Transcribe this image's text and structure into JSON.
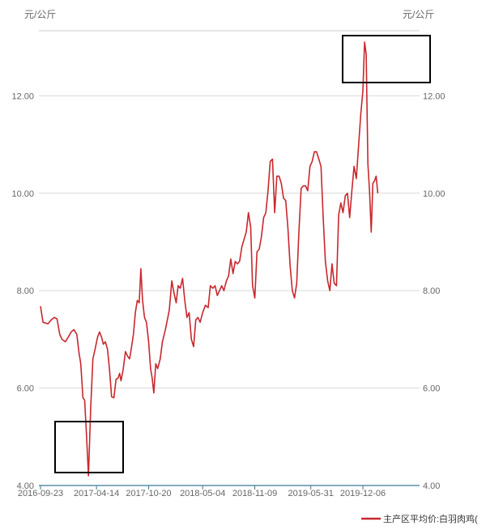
{
  "chart_data": {
    "type": "line",
    "y_unit_left": "元/公斤",
    "y_unit_right": "元/公斤",
    "ylim": [
      4.0,
      13.6
    ],
    "y_ticks": [
      "4.00",
      "6.00",
      "8.00",
      "10.00",
      "12.00"
    ],
    "x_tick_labels": [
      "2016-09-23",
      "2017-04-14",
      "2017-10-20",
      "2018-05-04",
      "2018-11-09",
      "2019-05-31",
      "2019-12-06"
    ],
    "grid": "horizontal",
    "legend_position": "bottom-right",
    "series_color": "#c8282d",
    "series": [
      {
        "name": "主产区平均价:白羽肉鸡(",
        "points": [
          [
            "2016-09-23",
            7.68
          ],
          [
            "2016-10-02",
            7.35
          ],
          [
            "2016-10-20",
            7.32
          ],
          [
            "2016-11-01",
            7.4
          ],
          [
            "2016-11-12",
            7.45
          ],
          [
            "2016-11-22",
            7.42
          ],
          [
            "2016-12-02",
            7.1
          ],
          [
            "2016-12-10",
            7.0
          ],
          [
            "2016-12-22",
            6.95
          ],
          [
            "2017-01-02",
            7.05
          ],
          [
            "2017-01-12",
            7.15
          ],
          [
            "2017-01-22",
            7.2
          ],
          [
            "2017-02-02",
            7.1
          ],
          [
            "2017-02-09",
            6.75
          ],
          [
            "2017-02-16",
            6.5
          ],
          [
            "2017-02-24",
            5.8
          ],
          [
            "2017-03-02",
            5.75
          ],
          [
            "2017-03-09",
            5.0
          ],
          [
            "2017-03-16",
            4.2
          ],
          [
            "2017-03-24",
            5.6
          ],
          [
            "2017-04-01",
            6.6
          ],
          [
            "2017-04-09",
            6.8
          ],
          [
            "2017-04-18",
            7.05
          ],
          [
            "2017-04-25",
            7.15
          ],
          [
            "2017-05-02",
            7.05
          ],
          [
            "2017-05-09",
            6.9
          ],
          [
            "2017-05-16",
            6.95
          ],
          [
            "2017-05-24",
            6.8
          ],
          [
            "2017-05-31",
            6.4
          ],
          [
            "2017-06-08",
            5.82
          ],
          [
            "2017-06-16",
            5.8
          ],
          [
            "2017-06-24",
            6.18
          ],
          [
            "2017-07-01",
            6.2
          ],
          [
            "2017-07-07",
            6.3
          ],
          [
            "2017-07-12",
            6.15
          ],
          [
            "2017-07-20",
            6.4
          ],
          [
            "2017-07-28",
            6.75
          ],
          [
            "2017-08-05",
            6.65
          ],
          [
            "2017-08-12",
            6.6
          ],
          [
            "2017-08-18",
            6.8
          ],
          [
            "2017-08-26",
            7.1
          ],
          [
            "2017-09-02",
            7.55
          ],
          [
            "2017-09-09",
            7.8
          ],
          [
            "2017-09-16",
            7.75
          ],
          [
            "2017-09-22",
            8.45
          ],
          [
            "2017-09-28",
            7.8
          ],
          [
            "2017-10-05",
            7.45
          ],
          [
            "2017-10-12",
            7.35
          ],
          [
            "2017-10-20",
            6.95
          ],
          [
            "2017-10-27",
            6.4
          ],
          [
            "2017-11-02",
            6.2
          ],
          [
            "2017-11-08",
            5.9
          ],
          [
            "2017-11-15",
            6.5
          ],
          [
            "2017-11-22",
            6.4
          ],
          [
            "2017-12-01",
            6.6
          ],
          [
            "2017-12-09",
            6.95
          ],
          [
            "2017-12-20",
            7.2
          ],
          [
            "2018-01-03",
            7.6
          ],
          [
            "2018-01-12",
            8.2
          ],
          [
            "2018-01-20",
            7.95
          ],
          [
            "2018-01-28",
            7.75
          ],
          [
            "2018-02-04",
            8.1
          ],
          [
            "2018-02-12",
            8.05
          ],
          [
            "2018-02-20",
            8.25
          ],
          [
            "2018-02-28",
            7.8
          ],
          [
            "2018-03-08",
            7.45
          ],
          [
            "2018-03-16",
            7.55
          ],
          [
            "2018-03-24",
            7.0
          ],
          [
            "2018-04-01",
            6.85
          ],
          [
            "2018-04-09",
            7.4
          ],
          [
            "2018-04-17",
            7.45
          ],
          [
            "2018-04-25",
            7.35
          ],
          [
            "2018-05-04",
            7.55
          ],
          [
            "2018-05-14",
            7.7
          ],
          [
            "2018-05-24",
            7.65
          ],
          [
            "2018-06-01",
            8.1
          ],
          [
            "2018-06-10",
            8.05
          ],
          [
            "2018-06-18",
            8.1
          ],
          [
            "2018-06-26",
            7.9
          ],
          [
            "2018-07-04",
            8.0
          ],
          [
            "2018-07-12",
            8.1
          ],
          [
            "2018-07-20",
            8.0
          ],
          [
            "2018-07-29",
            8.2
          ],
          [
            "2018-08-06",
            8.3
          ],
          [
            "2018-08-14",
            8.65
          ],
          [
            "2018-08-22",
            8.35
          ],
          [
            "2018-08-30",
            8.6
          ],
          [
            "2018-09-07",
            8.55
          ],
          [
            "2018-09-15",
            8.6
          ],
          [
            "2018-09-23",
            8.9
          ],
          [
            "2018-10-01",
            9.05
          ],
          [
            "2018-10-09",
            9.2
          ],
          [
            "2018-10-17",
            9.6
          ],
          [
            "2018-10-25",
            9.3
          ],
          [
            "2018-11-01",
            8.1
          ],
          [
            "2018-11-09",
            7.85
          ],
          [
            "2018-11-17",
            8.8
          ],
          [
            "2018-11-25",
            8.85
          ],
          [
            "2018-12-03",
            9.1
          ],
          [
            "2018-12-11",
            9.5
          ],
          [
            "2018-12-19",
            9.6
          ],
          [
            "2018-12-27",
            10.05
          ],
          [
            "2019-01-04",
            10.65
          ],
          [
            "2019-01-12",
            10.7
          ],
          [
            "2019-01-20",
            9.6
          ],
          [
            "2019-01-28",
            10.35
          ],
          [
            "2019-02-05",
            10.35
          ],
          [
            "2019-02-13",
            10.2
          ],
          [
            "2019-02-21",
            9.9
          ],
          [
            "2019-03-01",
            9.85
          ],
          [
            "2019-03-09",
            9.3
          ],
          [
            "2019-03-17",
            8.5
          ],
          [
            "2019-03-25",
            8.0
          ],
          [
            "2019-04-02",
            7.85
          ],
          [
            "2019-04-10",
            8.15
          ],
          [
            "2019-04-18",
            9.2
          ],
          [
            "2019-04-26",
            10.1
          ],
          [
            "2019-05-04",
            10.15
          ],
          [
            "2019-05-12",
            10.15
          ],
          [
            "2019-05-20",
            10.05
          ],
          [
            "2019-05-28",
            10.55
          ],
          [
            "2019-06-05",
            10.65
          ],
          [
            "2019-06-13",
            10.85
          ],
          [
            "2019-06-21",
            10.85
          ],
          [
            "2019-06-29",
            10.7
          ],
          [
            "2019-07-07",
            10.55
          ],
          [
            "2019-07-15",
            9.5
          ],
          [
            "2019-07-23",
            8.6
          ],
          [
            "2019-07-31",
            8.2
          ],
          [
            "2019-08-08",
            8.0
          ],
          [
            "2019-08-16",
            8.55
          ],
          [
            "2019-08-24",
            8.15
          ],
          [
            "2019-09-01",
            8.1
          ],
          [
            "2019-09-09",
            9.55
          ],
          [
            "2019-09-17",
            9.8
          ],
          [
            "2019-09-25",
            9.6
          ],
          [
            "2019-10-03",
            9.95
          ],
          [
            "2019-10-11",
            10.0
          ],
          [
            "2019-10-19",
            9.5
          ],
          [
            "2019-10-27",
            10.05
          ],
          [
            "2019-11-04",
            10.55
          ],
          [
            "2019-11-12",
            10.3
          ],
          [
            "2019-11-20",
            10.95
          ],
          [
            "2019-11-28",
            11.6
          ],
          [
            "2019-12-06",
            12.1
          ],
          [
            "2019-12-12",
            13.1
          ],
          [
            "2019-12-18",
            12.85
          ],
          [
            "2019-12-24",
            10.6
          ],
          [
            "2019-12-30",
            10.05
          ],
          [
            "2020-01-05",
            9.2
          ],
          [
            "2020-01-11",
            10.2
          ],
          [
            "2020-01-17",
            10.25
          ],
          [
            "2020-01-23",
            10.35
          ],
          [
            "2020-01-29",
            10.0
          ]
        ]
      }
    ]
  }
}
